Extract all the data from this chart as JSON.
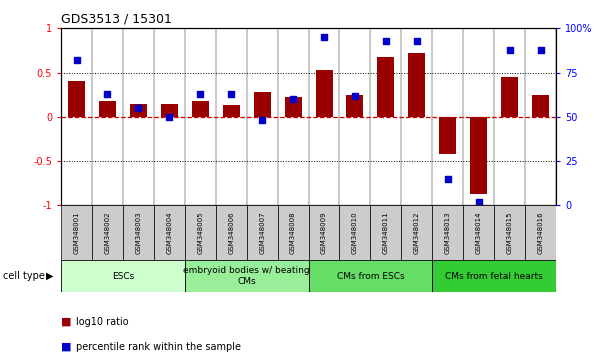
{
  "title": "GDS3513 / 15301",
  "samples": [
    "GSM348001",
    "GSM348002",
    "GSM348003",
    "GSM348004",
    "GSM348005",
    "GSM348006",
    "GSM348007",
    "GSM348008",
    "GSM348009",
    "GSM348010",
    "GSM348011",
    "GSM348012",
    "GSM348013",
    "GSM348014",
    "GSM348015",
    "GSM348016"
  ],
  "log10_ratio": [
    0.4,
    0.18,
    0.15,
    0.14,
    0.18,
    0.13,
    0.28,
    0.22,
    0.53,
    0.25,
    0.68,
    0.72,
    -0.42,
    -0.87,
    0.45,
    0.25
  ],
  "percentile_rank": [
    82,
    63,
    55,
    50,
    63,
    63,
    48,
    60,
    95,
    62,
    93,
    93,
    15,
    2,
    88,
    88
  ],
  "ylim_left": [
    -1,
    1
  ],
  "ylim_right": [
    0,
    100
  ],
  "bar_color": "#990000",
  "dot_color": "#0000cc",
  "zero_line_color": "#cc0000",
  "dotted_color": "#000000",
  "cell_types": [
    {
      "label": "ESCs",
      "start": 0,
      "end": 3,
      "color": "#ccffcc"
    },
    {
      "label": "embryoid bodies w/ beating\nCMs",
      "start": 4,
      "end": 7,
      "color": "#99ee99"
    },
    {
      "label": "CMs from ESCs",
      "start": 8,
      "end": 11,
      "color": "#66dd66"
    },
    {
      "label": "CMs from fetal hearts",
      "start": 12,
      "end": 15,
      "color": "#33cc33"
    }
  ],
  "left_yticks": [
    -1,
    -0.5,
    0,
    0.5,
    1
  ],
  "left_ytick_labels": [
    "-1",
    "-0.5",
    "0",
    "0.5",
    "1"
  ],
  "right_yticks": [
    0,
    25,
    50,
    75,
    100
  ],
  "right_ytick_labels": [
    "0",
    "25",
    "50",
    "75",
    "100%"
  ],
  "legend_bar_label": "log10 ratio",
  "legend_dot_label": "percentile rank within the sample",
  "sample_box_color": "#cccccc",
  "fig_width": 6.11,
  "fig_height": 3.54,
  "dpi": 100
}
